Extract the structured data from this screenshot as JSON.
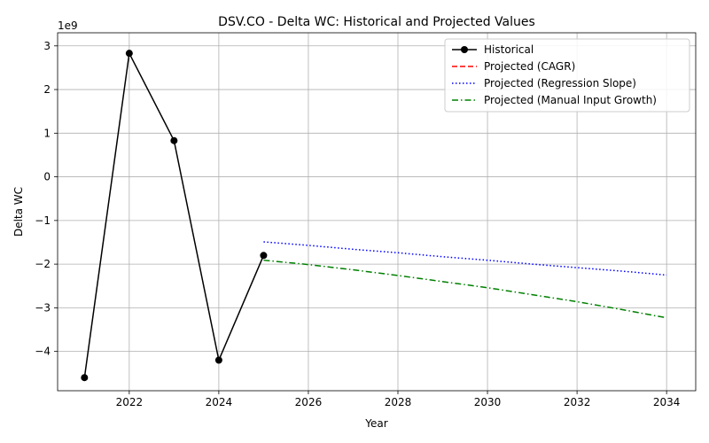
{
  "chart_data": {
    "type": "line",
    "title": "DSV.CO - Delta WC: Historical and Projected Values",
    "xlabel": "Year",
    "ylabel": "Delta WC",
    "offset_text": "1e9",
    "scale": 1000000000,
    "xlim": [
      2020.4,
      2034.65
    ],
    "ylim": [
      -4.9,
      3.3
    ],
    "xticks": [
      2022,
      2024,
      2026,
      2028,
      2030,
      2032,
      2034
    ],
    "yticks": [
      -4,
      -3,
      -2,
      -1,
      0,
      1,
      2,
      3
    ],
    "ytick_labels": [
      "−4",
      "−3",
      "−2",
      "−1",
      "0",
      "1",
      "2",
      "3"
    ],
    "grid": true,
    "legend_position": "upper right",
    "series": [
      {
        "name": "Historical",
        "style": "solid",
        "marker": "circle",
        "color": "#000000",
        "x": [
          2021,
          2022,
          2023,
          2024,
          2025
        ],
        "y": [
          -4.6,
          2.83,
          0.83,
          -4.2,
          -1.8
        ]
      },
      {
        "name": "Projected (CAGR)",
        "style": "dashed",
        "marker": "none",
        "color": "#ff0000",
        "x": [],
        "y": []
      },
      {
        "name": "Projected (Regression Slope)",
        "style": "dotted",
        "marker": "none",
        "color": "#0000ff",
        "x": [
          2025,
          2026,
          2027,
          2028,
          2029,
          2030,
          2031,
          2032,
          2033,
          2034
        ],
        "y": [
          -1.49,
          -1.57,
          -1.66,
          -1.74,
          -1.83,
          -1.91,
          -2.0,
          -2.08,
          -2.16,
          -2.25
        ]
      },
      {
        "name": "Projected (Manual Input Growth)",
        "style": "dashdot",
        "marker": "none",
        "color": "#008000",
        "x": [
          2025,
          2026,
          2027,
          2028,
          2029,
          2030,
          2031,
          2032,
          2033,
          2034
        ],
        "y": [
          -1.91,
          -2.01,
          -2.13,
          -2.26,
          -2.4,
          -2.54,
          -2.7,
          -2.86,
          -3.04,
          -3.23
        ]
      }
    ]
  }
}
